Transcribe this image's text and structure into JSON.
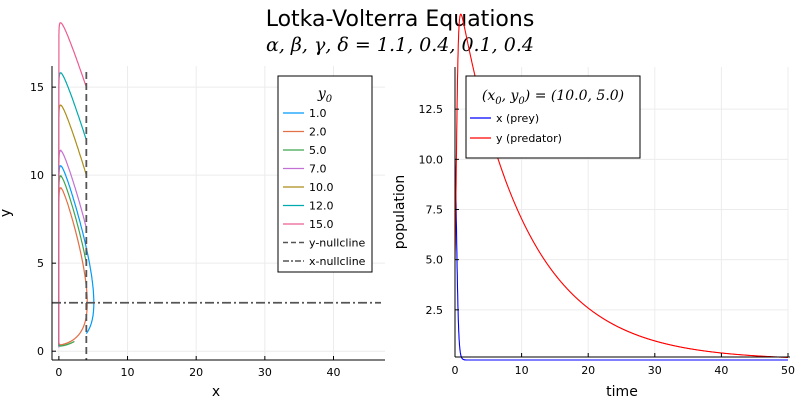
{
  "chart_data": [
    {
      "type": "line",
      "title": "Lotka-Volterra Equations",
      "subtitle": "α, β, γ, δ = 1.1, 0.4, 0.1, 0.4",
      "params": {
        "alpha": 1.1,
        "beta": 0.4,
        "gamma": 0.1,
        "delta": 0.4
      },
      "xlabel": "x",
      "ylabel": "y",
      "xlim": [
        -1,
        47.5
      ],
      "ylim": [
        -0.5,
        16.2
      ],
      "xticks": [
        0,
        10,
        20,
        30,
        40
      ],
      "yticks": [
        0,
        5,
        10,
        15
      ],
      "grid": true,
      "legend_title": "y0",
      "legend_placement": "top-right",
      "series": [
        {
          "name": "1.0",
          "y0": 1.0,
          "color": "#009af9",
          "kind": "orbit"
        },
        {
          "name": "2.0",
          "y0": 2.0,
          "color": "#e26f46",
          "kind": "orbit"
        },
        {
          "name": "5.0",
          "y0": 5.0,
          "color": "#3ea44e",
          "kind": "orbit"
        },
        {
          "name": "7.0",
          "y0": 7.0,
          "color": "#c271d2",
          "kind": "orbit"
        },
        {
          "name": "10.0",
          "y0": 10.0,
          "color": "#ac8e18",
          "kind": "orbit"
        },
        {
          "name": "12.0",
          "y0": 12.0,
          "color": "#00a9ad",
          "kind": "orbit"
        },
        {
          "name": "15.0",
          "y0": 15.0,
          "color": "#ed5d92",
          "kind": "orbit"
        },
        {
          "name": "y-nullcline",
          "x": 4.0,
          "color": "#555555",
          "kind": "vline",
          "dash": "7,4"
        },
        {
          "name": "x-nullcline",
          "y": 2.75,
          "color": "#555555",
          "kind": "hline",
          "dash": "9,3,2,3"
        }
      ],
      "x_initial": 4.0
    },
    {
      "type": "line",
      "title": "",
      "xlabel": "time",
      "ylabel": "population",
      "xlim": [
        0,
        50
      ],
      "ylim": [
        0.15,
        14.6
      ],
      "xticks": [
        0,
        10,
        20,
        30,
        40,
        50
      ],
      "yticks": [
        2.5,
        5.0,
        7.5,
        10.0,
        12.5
      ],
      "ytick_labels": [
        "2.5",
        "5.0",
        "7.5",
        "10.0",
        "12.5"
      ],
      "grid": true,
      "legend_title": "(x0, y0) = (10.0, 5.0)",
      "legend_placement": "top-left",
      "initial": {
        "x0": 10.0,
        "y0": 5.0
      },
      "t_end": 50,
      "series": [
        {
          "name": "x (prey)",
          "color": "#0000ff",
          "variable": "x"
        },
        {
          "name": "y (predator)",
          "color": "#ff0000",
          "variable": "y"
        }
      ]
    }
  ]
}
